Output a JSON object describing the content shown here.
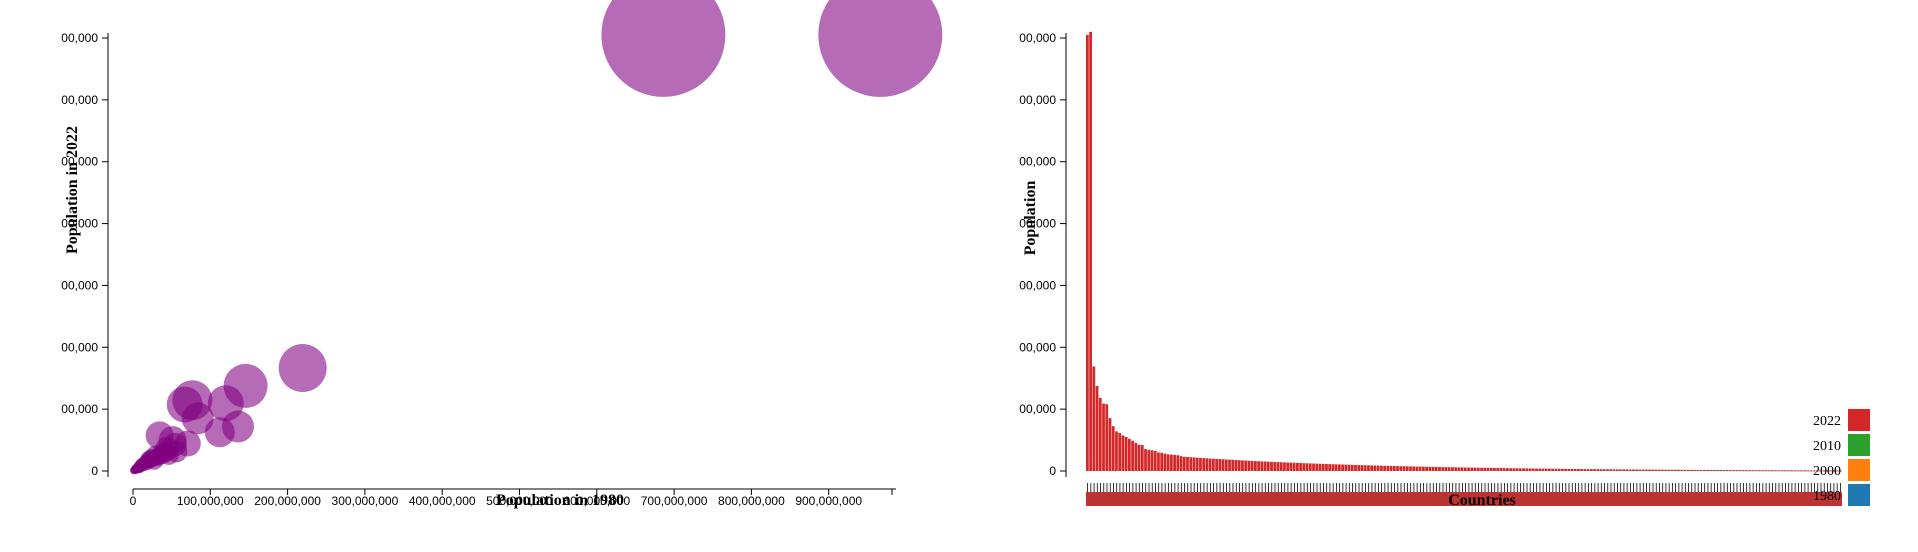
{
  "chart_data": [
    {
      "type": "scatter",
      "xlabel": "Population in 1980",
      "ylabel": "Population in 2022",
      "x_ticks": [
        "0",
        "100,000,000",
        "200,000,000",
        "300,000,000",
        "400,000,000",
        "500,000,000",
        "600,000,000",
        "700,000,000",
        "800,000,000",
        "900,000,000"
      ],
      "y_ticks": [
        "0",
        "00,000",
        "00,000",
        "00,000",
        "00,000",
        "00,000",
        "00,000",
        "00,000"
      ],
      "xlim": [
        0,
        1000000000
      ],
      "ylim": [
        0,
        1400000000
      ],
      "point_color": "#800080",
      "points": [
        {
          "x": 982000000,
          "y": 1410000000,
          "r": 62
        },
        {
          "x": 697000000,
          "y": 1410000000,
          "r": 62
        },
        {
          "x": 223000000,
          "y": 333000000,
          "r": 24
        },
        {
          "x": 148000000,
          "y": 275000000,
          "r": 22
        },
        {
          "x": 78000000,
          "y": 229000000,
          "r": 20
        },
        {
          "x": 68000000,
          "y": 215000000,
          "r": 18
        },
        {
          "x": 122000000,
          "y": 219000000,
          "r": 18
        },
        {
          "x": 138000000,
          "y": 144000000,
          "r": 16
        },
        {
          "x": 114000000,
          "y": 125000000,
          "r": 15
        },
        {
          "x": 85000000,
          "y": 170000000,
          "r": 16
        },
        {
          "x": 35000000,
          "y": 115000000,
          "r": 14
        },
        {
          "x": 72000000,
          "y": 89000000,
          "r": 13
        },
        {
          "x": 52000000,
          "y": 100000000,
          "r": 14
        },
        {
          "x": 45000000,
          "y": 72000000,
          "r": 12
        },
        {
          "x": 57000000,
          "y": 63000000,
          "r": 11
        },
        {
          "x": 38000000,
          "y": 55000000,
          "r": 10
        },
        {
          "x": 30000000,
          "y": 50000000,
          "r": 10
        },
        {
          "x": 25000000,
          "y": 42000000,
          "r": 9
        },
        {
          "x": 47000000,
          "y": 52000000,
          "r": 10
        },
        {
          "x": 20000000,
          "y": 35000000,
          "r": 8
        },
        {
          "x": 18000000,
          "y": 28000000,
          "r": 8
        },
        {
          "x": 15000000,
          "y": 25000000,
          "r": 7
        },
        {
          "x": 12000000,
          "y": 20000000,
          "r": 7
        },
        {
          "x": 10000000,
          "y": 18000000,
          "r": 6
        },
        {
          "x": 9000000,
          "y": 14000000,
          "r": 6
        },
        {
          "x": 8000000,
          "y": 12000000,
          "r": 6
        },
        {
          "x": 6000000,
          "y": 10000000,
          "r": 5
        },
        {
          "x": 5000000,
          "y": 8000000,
          "r": 5
        },
        {
          "x": 4000000,
          "y": 6000000,
          "r": 5
        },
        {
          "x": 3000000,
          "y": 5000000,
          "r": 4
        },
        {
          "x": 28000000,
          "y": 33000000,
          "r": 9
        },
        {
          "x": 22000000,
          "y": 38000000,
          "r": 9
        },
        {
          "x": 33000000,
          "y": 45000000,
          "r": 9
        },
        {
          "x": 42000000,
          "y": 60000000,
          "r": 10
        },
        {
          "x": 55000000,
          "y": 85000000,
          "r": 12
        },
        {
          "x": 2000000,
          "y": 3000000,
          "r": 4
        },
        {
          "x": 1000000,
          "y": 2000000,
          "r": 4
        }
      ]
    },
    {
      "type": "bar",
      "xlabel": "Countries",
      "ylabel": "Population",
      "y_ticks": [
        "0",
        "00,000",
        "00,000",
        "00,000",
        "00,000",
        "00,000",
        "00,000",
        "00,000"
      ],
      "ylim": [
        0,
        1400000000
      ],
      "bar_color": "#d62728",
      "bar_count": 234,
      "top_values": [
        1410000000,
        1420000000,
        338000000,
        275000000,
        236000000,
        218000000,
        216000000,
        171000000,
        145000000,
        128000000,
        123000000,
        115000000,
        110000000,
        104000000,
        98000000,
        91000000,
        85000000,
        84000000,
        71000000,
        68000000,
        67000000,
        65000000,
        60000000,
        59000000,
        56000000,
        54000000,
        53000000,
        52000000,
        51000000,
        48000000
      ],
      "legend": [
        {
          "label": "2022",
          "color": "#d62728"
        },
        {
          "label": "2010",
          "color": "#2ca02c"
        },
        {
          "label": "2000",
          "color": "#ff7f0e"
        },
        {
          "label": "1980",
          "color": "#1f77b4"
        }
      ]
    }
  ]
}
